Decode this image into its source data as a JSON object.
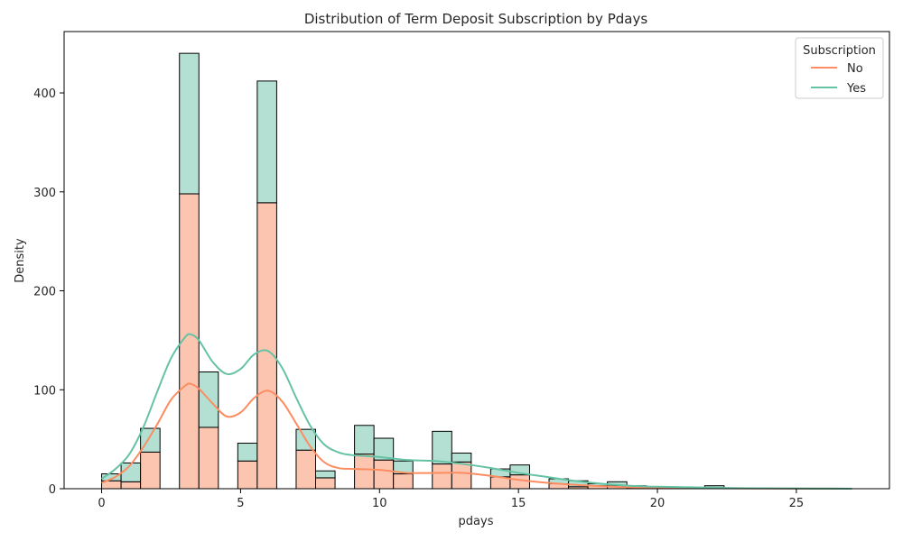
{
  "chart_data": {
    "type": "bar",
    "subtype": "stacked-histogram-with-kde",
    "title": "Distribution of Term Deposit Subscription by Pdays",
    "xlabel": "pdays",
    "ylabel": "Density",
    "xlim": [
      -1.35,
      28.35
    ],
    "ylim": [
      0,
      462
    ],
    "xticks": [
      0,
      5,
      10,
      15,
      20,
      25
    ],
    "yticks": [
      0,
      100,
      200,
      300,
      400
    ],
    "grid": false,
    "legend": {
      "title": "Subscription",
      "placement": "top-right"
    },
    "series": [
      {
        "name": "No",
        "color": "#fc8d62",
        "bar_fill": "#fcc5af",
        "bins": [
          {
            "x0": 0.0,
            "x1": 0.7,
            "value": 8
          },
          {
            "x0": 0.7,
            "x1": 1.4,
            "value": 7
          },
          {
            "x0": 1.4,
            "x1": 2.1,
            "value": 37
          },
          {
            "x0": 2.8,
            "x1": 3.5,
            "value": 298
          },
          {
            "x0": 3.5,
            "x1": 4.2,
            "value": 62
          },
          {
            "x0": 4.9,
            "x1": 5.6,
            "value": 28
          },
          {
            "x0": 5.6,
            "x1": 6.3,
            "value": 289
          },
          {
            "x0": 7.0,
            "x1": 7.7,
            "value": 39
          },
          {
            "x0": 7.7,
            "x1": 8.4,
            "value": 11
          },
          {
            "x0": 9.1,
            "x1": 9.8,
            "value": 35
          },
          {
            "x0": 9.8,
            "x1": 10.5,
            "value": 29
          },
          {
            "x0": 10.5,
            "x1": 11.2,
            "value": 15
          },
          {
            "x0": 11.9,
            "x1": 12.6,
            "value": 25
          },
          {
            "x0": 12.6,
            "x1": 13.3,
            "value": 27
          },
          {
            "x0": 14.0,
            "x1": 14.7,
            "value": 12
          },
          {
            "x0": 14.7,
            "x1": 15.4,
            "value": 14
          },
          {
            "x0": 16.1,
            "x1": 16.8,
            "value": 5
          },
          {
            "x0": 16.8,
            "x1": 17.5,
            "value": 2
          },
          {
            "x0": 17.5,
            "x1": 18.2,
            "value": 3
          },
          {
            "x0": 18.2,
            "x1": 18.9,
            "value": 3
          },
          {
            "x0": 18.9,
            "x1": 19.6,
            "value": 1
          },
          {
            "x0": 21.7,
            "x1": 22.4,
            "value": 1
          }
        ],
        "kde": {
          "x": [
            0,
            0.5,
            1,
            1.5,
            2,
            2.5,
            3,
            3.2,
            3.5,
            4,
            4.5,
            5,
            5.5,
            6,
            6.5,
            7,
            7.5,
            8,
            8.5,
            9,
            10,
            11,
            12,
            13,
            14,
            15,
            16,
            17,
            18,
            19,
            20,
            21,
            22,
            23,
            24,
            25,
            26,
            27
          ],
          "y": [
            6,
            12,
            23,
            42,
            65,
            90,
            104,
            106,
            101,
            86,
            73,
            77,
            92,
            99,
            88,
            66,
            43,
            27,
            21,
            20,
            19,
            16,
            16,
            16,
            13,
            9,
            6,
            4,
            2.5,
            1.5,
            1,
            0.7,
            0.5,
            0.3,
            0.2,
            0.1,
            0.1,
            0
          ]
        }
      },
      {
        "name": "Yes",
        "color": "#66c2a5",
        "bar_fill": "#b3e0d2",
        "bins": [
          {
            "x0": 0.0,
            "x1": 0.7,
            "value": 7
          },
          {
            "x0": 0.7,
            "x1": 1.4,
            "value": 19
          },
          {
            "x0": 1.4,
            "x1": 2.1,
            "value": 24
          },
          {
            "x0": 2.8,
            "x1": 3.5,
            "value": 142
          },
          {
            "x0": 3.5,
            "x1": 4.2,
            "value": 56
          },
          {
            "x0": 4.9,
            "x1": 5.6,
            "value": 18
          },
          {
            "x0": 5.6,
            "x1": 6.3,
            "value": 123
          },
          {
            "x0": 7.0,
            "x1": 7.7,
            "value": 21
          },
          {
            "x0": 7.7,
            "x1": 8.4,
            "value": 7
          },
          {
            "x0": 9.1,
            "x1": 9.8,
            "value": 29
          },
          {
            "x0": 9.8,
            "x1": 10.5,
            "value": 22
          },
          {
            "x0": 10.5,
            "x1": 11.2,
            "value": 13
          },
          {
            "x0": 11.9,
            "x1": 12.6,
            "value": 33
          },
          {
            "x0": 12.6,
            "x1": 13.3,
            "value": 9
          },
          {
            "x0": 14.0,
            "x1": 14.7,
            "value": 8
          },
          {
            "x0": 14.7,
            "x1": 15.4,
            "value": 10
          },
          {
            "x0": 16.1,
            "x1": 16.8,
            "value": 5
          },
          {
            "x0": 16.8,
            "x1": 17.5,
            "value": 6
          },
          {
            "x0": 17.5,
            "x1": 18.2,
            "value": 2
          },
          {
            "x0": 18.2,
            "x1": 18.9,
            "value": 4
          },
          {
            "x0": 18.9,
            "x1": 19.6,
            "value": 2
          },
          {
            "x0": 21.7,
            "x1": 22.4,
            "value": 2
          }
        ],
        "kde": {
          "x": [
            0,
            0.5,
            1,
            1.5,
            2,
            2.5,
            3,
            3.2,
            3.5,
            4,
            4.5,
            5,
            5.5,
            6,
            6.5,
            7,
            7.5,
            8,
            8.5,
            9,
            10,
            11,
            12,
            13,
            14,
            15,
            16,
            17,
            18,
            19,
            20,
            21,
            22,
            23,
            24,
            25,
            26,
            27
          ],
          "y": [
            10,
            20,
            35,
            62,
            98,
            132,
            153,
            156,
            150,
            128,
            116,
            121,
            136,
            139,
            122,
            92,
            64,
            45,
            37,
            34,
            32,
            29,
            28,
            25,
            21,
            16,
            12,
            8,
            5,
            3,
            2,
            1.5,
            1,
            0.6,
            0.4,
            0.2,
            0.1,
            0
          ]
        }
      }
    ]
  }
}
